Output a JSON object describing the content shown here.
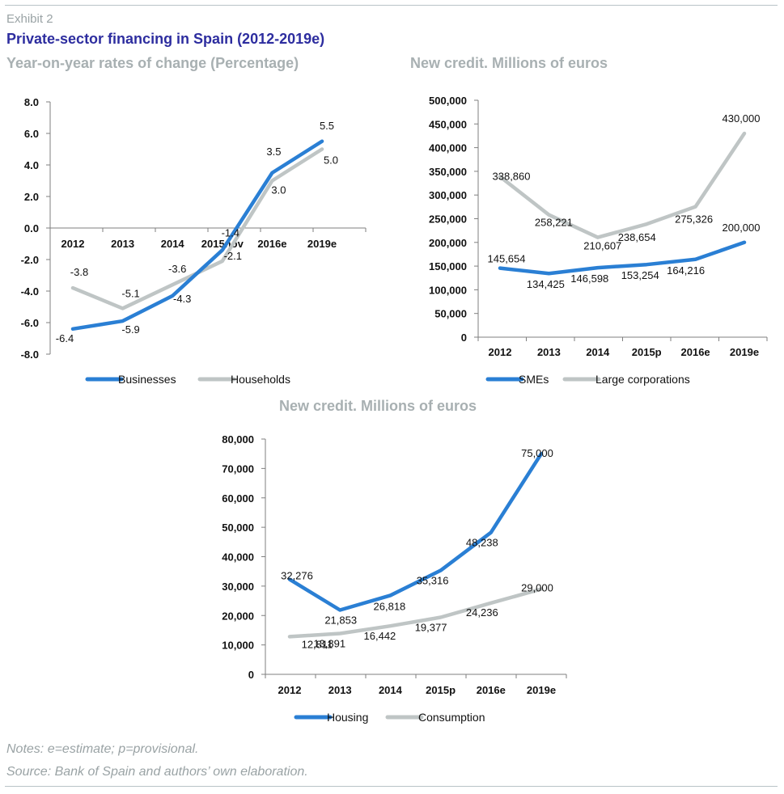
{
  "header": {
    "exhibit": "Exhibit 2",
    "title": "Private-sector financing in Spain (2012-2019e)"
  },
  "notes": {
    "note": "Notes: e=estimate; p=provisional.",
    "source": "Source: Bank of Spain and authors’ own elaboration."
  },
  "colors": {
    "primary": "#2a7fd4",
    "secondary": "#bfc5c5"
  },
  "chart_data": [
    {
      "type": "line",
      "title": "Year-on-year rates of change (Percentage)",
      "categories": [
        "2012",
        "2013",
        "2014",
        "2015nov",
        "2016e",
        "2019e"
      ],
      "ylim": [
        -8,
        8
      ],
      "yticks": [
        "8.0",
        "6.0",
        "4.0",
        "2.0",
        "0.0",
        "-2.0",
        "-4.0",
        "-6.0",
        "-8.0"
      ],
      "series": [
        {
          "name": "Businesses",
          "color": "#2a7fd4",
          "values": [
            -6.4,
            -5.9,
            -4.3,
            -1.4,
            3.5,
            5.5
          ],
          "labels": [
            "-6.4",
            "-5.9",
            "-4.3",
            "-1.4",
            "3.5",
            "5.5"
          ]
        },
        {
          "name": "Households",
          "color": "#bfc5c5",
          "values": [
            -3.8,
            -5.1,
            -3.6,
            -2.1,
            3.0,
            5.0
          ],
          "labels": [
            "-3.8",
            "-5.1",
            "-3.6",
            "-2.1",
            "3.0",
            "5.0"
          ]
        }
      ],
      "legend": "bottom"
    },
    {
      "type": "line",
      "title": "New credit. Millions of euros",
      "categories": [
        "2012",
        "2013",
        "2014",
        "2015p",
        "2016e",
        "2019e"
      ],
      "ylim": [
        0,
        500000
      ],
      "yticks": [
        "500,000",
        "450,000",
        "400,000",
        "350,000",
        "300,000",
        "250,000",
        "200,000",
        "150,000",
        "100,000",
        "50,000",
        "0"
      ],
      "series": [
        {
          "name": "SMEs",
          "color": "#2a7fd4",
          "values": [
            145654,
            134425,
            146598,
            153254,
            164216,
            200000
          ],
          "labels": [
            "145,654",
            "134,425",
            "146,598",
            "153,254",
            "164,216",
            "200,000"
          ]
        },
        {
          "name": "Large corporations",
          "color": "#bfc5c5",
          "values": [
            338860,
            258221,
            210607,
            238654,
            275326,
            430000
          ],
          "labels": [
            "338,860",
            "258,221",
            "210,607",
            "238,654",
            "275,326",
            "430,000"
          ]
        }
      ],
      "legend": "bottom"
    },
    {
      "type": "line",
      "title": "New credit. Millions of euros",
      "categories": [
        "2012",
        "2013",
        "2014",
        "2015p",
        "2016e",
        "2019e"
      ],
      "ylim": [
        0,
        80000
      ],
      "yticks": [
        "80,000",
        "70,000",
        "60,000",
        "50,000",
        "40,000",
        "30,000",
        "20,000",
        "10,000",
        "0"
      ],
      "series": [
        {
          "name": "Housing",
          "color": "#2a7fd4",
          "values": [
            32276,
            21853,
            26818,
            35316,
            48238,
            75000
          ],
          "labels": [
            "32,276",
            "21,853",
            "26,818",
            "35,316",
            "48,238",
            "75,000"
          ]
        },
        {
          "name": "Consumption",
          "color": "#bfc5c5",
          "values": [
            12811,
            13891,
            16442,
            19377,
            24236,
            29000
          ],
          "labels": [
            "12,811",
            "13,891",
            "16,442",
            "19,377",
            "24,236",
            "29,000"
          ]
        }
      ],
      "legend": "bottom"
    }
  ]
}
